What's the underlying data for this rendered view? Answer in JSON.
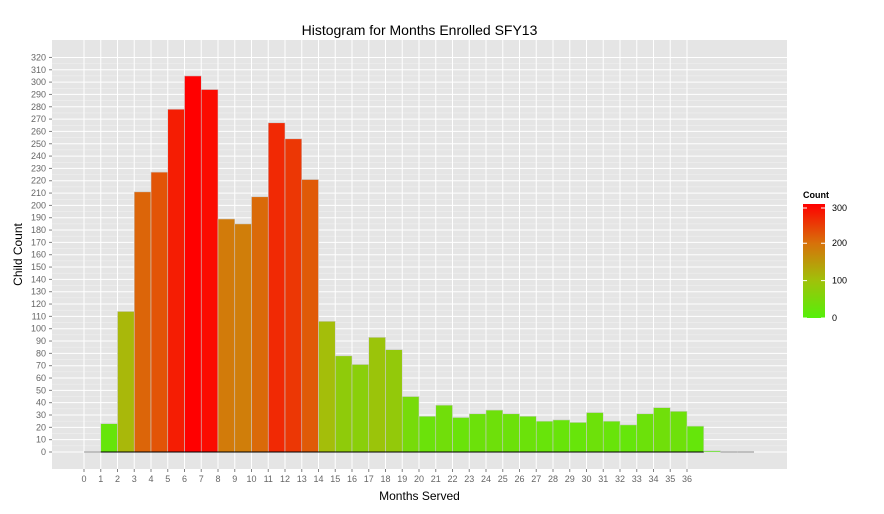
{
  "chart_data": {
    "type": "bar",
    "title": "Histogram for Months Enrolled SFY13",
    "xlabel": "Months Served",
    "ylabel": "Child Count",
    "x_ticks": [
      "0",
      "1",
      "2",
      "3",
      "4",
      "5",
      "6",
      "7",
      "8",
      "9",
      "10",
      "11",
      "12",
      "13",
      "14",
      "15",
      "16",
      "17",
      "18",
      "19",
      "20",
      "21",
      "22",
      "23",
      "24",
      "25",
      "26",
      "27",
      "28",
      "29",
      "30",
      "31",
      "32",
      "33",
      "34",
      "35",
      "36"
    ],
    "y_ticks": [
      "0",
      "10",
      "20",
      "30",
      "40",
      "50",
      "60",
      "70",
      "80",
      "90",
      "100",
      "110",
      "120",
      "130",
      "140",
      "150",
      "160",
      "170",
      "180",
      "190",
      "200",
      "210",
      "220",
      "230",
      "240",
      "250",
      "260",
      "270",
      "280",
      "290",
      "300",
      "310",
      "320"
    ],
    "xlim": [
      -1,
      40
    ],
    "ylim": [
      -10,
      320
    ],
    "bins": [
      {
        "x": 1,
        "value": 23
      },
      {
        "x": 2,
        "value": 114
      },
      {
        "x": 3,
        "value": 211
      },
      {
        "x": 4,
        "value": 227
      },
      {
        "x": 5,
        "value": 278
      },
      {
        "x": 6,
        "value": 305
      },
      {
        "x": 7,
        "value": 294
      },
      {
        "x": 8,
        "value": 189
      },
      {
        "x": 9,
        "value": 185
      },
      {
        "x": 10,
        "value": 207
      },
      {
        "x": 11,
        "value": 267
      },
      {
        "x": 12,
        "value": 254
      },
      {
        "x": 13,
        "value": 221
      },
      {
        "x": 14,
        "value": 106
      },
      {
        "x": 15,
        "value": 78
      },
      {
        "x": 16,
        "value": 71
      },
      {
        "x": 17,
        "value": 93
      },
      {
        "x": 18,
        "value": 83
      },
      {
        "x": 19,
        "value": 45
      },
      {
        "x": 20,
        "value": 29
      },
      {
        "x": 21,
        "value": 38
      },
      {
        "x": 22,
        "value": 28
      },
      {
        "x": 23,
        "value": 31
      },
      {
        "x": 24,
        "value": 34
      },
      {
        "x": 25,
        "value": 31
      },
      {
        "x": 26,
        "value": 29
      },
      {
        "x": 27,
        "value": 25
      },
      {
        "x": 28,
        "value": 26
      },
      {
        "x": 29,
        "value": 24
      },
      {
        "x": 30,
        "value": 32
      },
      {
        "x": 31,
        "value": 25
      },
      {
        "x": 32,
        "value": 22
      },
      {
        "x": 33,
        "value": 31
      },
      {
        "x": 34,
        "value": 36
      },
      {
        "x": 35,
        "value": 33
      },
      {
        "x": 36,
        "value": 21
      },
      {
        "x": 37,
        "value": 1
      },
      {
        "x": 38,
        "value": 0
      },
      {
        "x": 39,
        "value": 0
      },
      {
        "x": 0,
        "value": 0
      }
    ],
    "grid": true,
    "legend": {
      "title": "Count",
      "position": "right",
      "ticks": [
        "0",
        "100",
        "200",
        "300"
      ],
      "tick_values": [
        0,
        100,
        200,
        300
      ],
      "color_low": "#00ff00",
      "color_high": "#ff0000",
      "max": 305
    },
    "colors": {
      "panel_background": "#e5e5e5",
      "grid_major": "#ffffff",
      "grid_minor": "#f2f2f2",
      "bar_outline": "#cccccc",
      "baseline": "#000000"
    }
  }
}
